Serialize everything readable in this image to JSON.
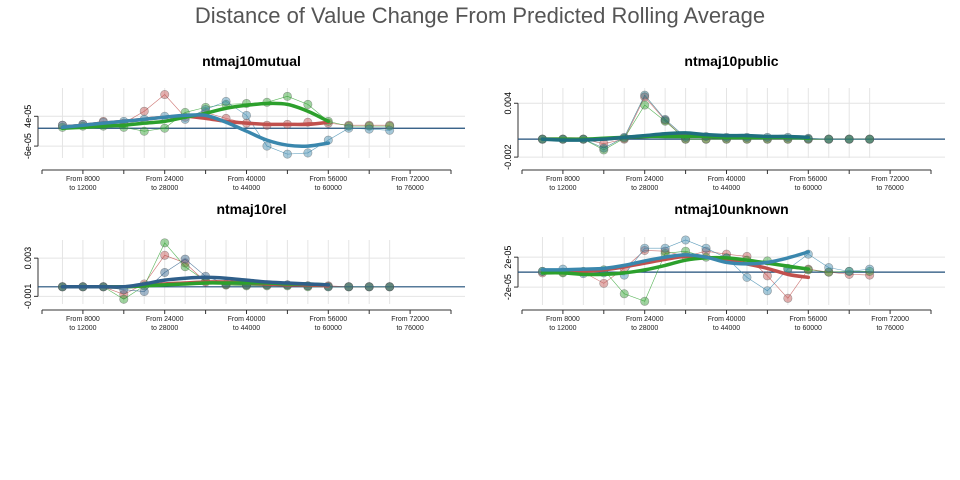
{
  "title": "Distance of Value Change From Predicted Rolling Average",
  "chart_data": [
    {
      "type": "line",
      "title": "ntmaj10mutual",
      "x": [
        4000,
        8000,
        12000,
        16000,
        20000,
        24000,
        28000,
        32000,
        36000,
        40000,
        44000,
        48000,
        52000,
        56000,
        60000,
        64000,
        68000
      ],
      "xlim": [
        0,
        80000
      ],
      "xticks": [
        {
          "value": 8000,
          "label": "From 8000\nto 12000"
        },
        {
          "value": 24000,
          "label": "From 24000\nto 28000"
        },
        {
          "value": 40000,
          "label": "From 40000\nto 44000"
        },
        {
          "value": 56000,
          "label": "From 56000\nto 60000"
        },
        {
          "value": 72000,
          "label": "From 72000\nto 76000"
        }
      ],
      "xminorticks": [
        0,
        16000,
        32000,
        48000,
        64000,
        80000
      ],
      "ylim": [
        -0.0001,
        0.000135
      ],
      "yticks": [
        {
          "value": -6e-05,
          "label": "-6e-05"
        },
        {
          "value": 4e-05,
          "label": "4e-05"
        }
      ],
      "hline": 0,
      "grid": true,
      "series": [
        {
          "color": "#c0504d",
          "values": [
            1e-05,
            1.3e-05,
            2.3e-05,
            1.7e-05,
            5.7e-05,
            0.000113,
            3.7e-05,
            5.3e-05,
            3.3e-05,
            1.7e-05,
            1e-05,
            1.3e-05,
            2e-05,
            1.7e-05,
            1e-05,
            1e-05,
            1e-05
          ],
          "trend": [
            3e-06,
            1e-05,
            1.7e-05,
            2.3e-05,
            3e-05,
            3.7e-05,
            4e-05,
            3.3e-05,
            2.3e-05,
            1.7e-05,
            1.3e-05,
            1.3e-05,
            1.3e-05,
            2e-05
          ]
        },
        {
          "color": "#2ca02c",
          "values": [
            3e-06,
            7e-06,
            7e-06,
            3e-06,
            -1e-05,
            0,
            5.3e-05,
            7e-05,
            8e-05,
            8.3e-05,
            8.7e-05,
            0.000107,
            8e-05,
            2.3e-05,
            7e-06,
            7e-06,
            7e-06
          ],
          "trend": [
            0,
            3e-06,
            7e-06,
            1e-05,
            1.7e-05,
            2.3e-05,
            3.7e-05,
            5e-05,
            6.7e-05,
            7.7e-05,
            8.3e-05,
            8e-05,
            5.7e-05,
            2.3e-05
          ]
        },
        {
          "color": "#3a87ad",
          "values": [
            1e-05,
            1.3e-05,
            2e-05,
            2.3e-05,
            3e-05,
            4e-05,
            3e-05,
            6.3e-05,
            9e-05,
            4.3e-05,
            -6e-05,
            -8.7e-05,
            -8.3e-05,
            -4e-05,
            0,
            -3e-06,
            -7e-06
          ],
          "trend": [
            3e-06,
            1e-05,
            1.7e-05,
            2.3e-05,
            3e-05,
            3.7e-05,
            4.3e-05,
            4.3e-05,
            2e-05,
            -1e-05,
            -4e-05,
            -5.7e-05,
            -6e-05,
            -5e-05
          ]
        }
      ]
    },
    {
      "type": "line",
      "title": "ntmaj10public",
      "x": [
        4000,
        8000,
        12000,
        16000,
        20000,
        24000,
        28000,
        32000,
        36000,
        40000,
        44000,
        48000,
        52000,
        56000,
        60000,
        64000,
        68000
      ],
      "xlim": [
        0,
        80000
      ],
      "xticks": [
        {
          "value": 8000,
          "label": "From 8000\nto 12000"
        },
        {
          "value": 24000,
          "label": "From 24000\nto 28000"
        },
        {
          "value": 40000,
          "label": "From 40000\nto 44000"
        },
        {
          "value": 56000,
          "label": "From 56000\nto 60000"
        },
        {
          "value": 72000,
          "label": "From 72000\nto 76000"
        }
      ],
      "xminorticks": [
        0,
        16000,
        32000,
        48000,
        64000,
        80000
      ],
      "ylim": [
        -0.0021,
        0.0057
      ],
      "yticks": [
        -0.002,
        0.004
      ],
      "hline": 0,
      "grid": true,
      "series": [
        {
          "color": "#c0504d",
          "values": [
            0,
            0,
            0,
            -0.0005,
            0,
            0.0047,
            0.0021,
            0,
            0,
            0,
            0,
            0,
            0,
            0,
            0,
            0,
            0
          ],
          "trend": [
            0,
            0,
            0,
            0,
            0.0002,
            0.0003,
            0.0004,
            0.0004,
            0.0003,
            0.0003,
            0.0003,
            0.0002,
            0.0002,
            0.0002
          ]
        },
        {
          "color": "#2ca02c",
          "values": [
            0,
            0,
            0,
            -0.0012,
            0.0001,
            0.0038,
            0.002,
            0,
            0,
            0,
            0,
            0,
            0,
            0,
            0,
            0,
            0
          ],
          "trend": [
            0,
            0,
            0,
            0.0001,
            0.0002,
            0.0003,
            0.0003,
            0.0003,
            0.0003,
            0.0002,
            0.0002,
            0.0002,
            0.0002,
            0.0001
          ]
        },
        {
          "color": "#1f6f80",
          "values": [
            0,
            0,
            0,
            -0.001,
            0.0002,
            0.0049,
            0.0022,
            0.0002,
            0.0003,
            0.0002,
            0.0002,
            0.0002,
            0.0002,
            0.0001,
            0,
            0,
            0
          ],
          "trend": [
            0,
            -0.0001,
            -0.0001,
            0,
            0.0002,
            0.0004,
            0.0006,
            0.0007,
            0.0005,
            0.0004,
            0.0004,
            0.0003,
            0.0003,
            0.0002
          ]
        }
      ]
    },
    {
      "type": "line",
      "title": "ntmaj10rel",
      "x": [
        4000,
        8000,
        12000,
        16000,
        20000,
        24000,
        28000,
        32000,
        36000,
        40000,
        44000,
        48000,
        52000,
        56000,
        60000,
        64000,
        68000
      ],
      "xlim": [
        0,
        80000
      ],
      "xticks": [
        {
          "value": 8000,
          "label": "From 8000\nto 12000"
        },
        {
          "value": 24000,
          "label": "From 24000\nto 28000"
        },
        {
          "value": 40000,
          "label": "From 40000\nto 44000"
        },
        {
          "value": 56000,
          "label": "From 56000\nto 60000"
        },
        {
          "value": 72000,
          "label": "From 72000\nto 76000"
        }
      ],
      "xminorticks": [
        0,
        16000,
        32000,
        48000,
        64000,
        80000
      ],
      "ylim": [
        -0.0018,
        0.0049
      ],
      "yticks": [
        -0.001,
        0.003
      ],
      "hline": 0,
      "grid": true,
      "series": [
        {
          "color": "#c0504d",
          "values": [
            0,
            0,
            0,
            -0.0008,
            0.0003,
            0.0033,
            0.0025,
            0.0005,
            0.0002,
            0.0002,
            0.0002,
            0.0002,
            0.0001,
            0.0001,
            0,
            0,
            0
          ],
          "trend": [
            0,
            0,
            0,
            0,
            0.0001,
            0.0003,
            0.0004,
            0.0005,
            0.0005,
            0.0004,
            0.0003,
            0.0002,
            0.0002,
            0.0001
          ]
        },
        {
          "color": "#2ca02c",
          "values": [
            0,
            0,
            0,
            -0.0013,
            0.0001,
            0.0046,
            0.0021,
            0.0006,
            0.0002,
            0.0001,
            0.0001,
            0.0001,
            0,
            0,
            0,
            0,
            0
          ],
          "trend": [
            0,
            0,
            0,
            0,
            0.0001,
            0.0002,
            0.0003,
            0.0004,
            0.0004,
            0.0004,
            0.0004,
            0.0003,
            0.0003,
            0.0002
          ]
        },
        {
          "color": "#2f5f8a",
          "values": [
            0,
            0,
            0,
            -0.0003,
            -0.0005,
            0.0015,
            0.0029,
            0.0011,
            0.0003,
            0.0002,
            0.0002,
            0.0002,
            0.0001,
            0,
            0,
            0,
            0
          ],
          "trend": [
            0,
            0,
            0,
            0,
            0.0003,
            0.0007,
            0.0009,
            0.001,
            0.0009,
            0.0007,
            0.0005,
            0.0004,
            0.0003,
            0.0002
          ]
        }
      ]
    },
    {
      "type": "line",
      "title": "ntmaj10unknown",
      "x": [
        4000,
        8000,
        12000,
        16000,
        20000,
        24000,
        28000,
        32000,
        36000,
        40000,
        44000,
        48000,
        52000,
        56000,
        60000,
        64000,
        68000
      ],
      "xlim": [
        0,
        80000
      ],
      "xticks": [
        {
          "value": 8000,
          "label": "From 8000\nto 12000"
        },
        {
          "value": 24000,
          "label": "From 24000\nto 28000"
        },
        {
          "value": 40000,
          "label": "From 40000\nto 44000"
        },
        {
          "value": 56000,
          "label": "From 56000\nto 60000"
        },
        {
          "value": 72000,
          "label": "From 72000\nto 76000"
        }
      ],
      "xminorticks": [
        0,
        16000,
        32000,
        48000,
        64000,
        80000
      ],
      "ylim": [
        -4.4e-05,
        4.7e-05
      ],
      "yticks": [
        {
          "value": -2e-05,
          "label": "-2e-05"
        },
        {
          "value": 2e-05,
          "label": "2e-05"
        }
      ],
      "hline": 0,
      "grid": true,
      "series": [
        {
          "color": "#c0504d",
          "values": [
            -1e-06,
            0,
            0,
            -1.5e-05,
            5e-06,
            2.9e-05,
            2.8e-05,
            2.1e-05,
            2.8e-05,
            2.4e-05,
            2.1e-05,
            -5e-06,
            -3.5e-05,
            4e-06,
            0,
            -3e-06,
            -4e-06
          ],
          "trend": [
            0,
            0,
            1e-06,
            3e-06,
            7e-06,
            1.2e-05,
            1.7e-05,
            2.1e-05,
            2e-05,
            1.6e-05,
            1.1e-05,
            5e-06,
            -3e-06,
            -7e-06
          ]
        },
        {
          "color": "#2ca02c",
          "values": [
            1e-06,
            -1e-06,
            1e-06,
            3e-06,
            -2.9e-05,
            -3.9e-05,
            2.5e-05,
            2.8e-05,
            2e-05,
            1.9e-05,
            1.6e-05,
            1.5e-05,
            5e-06,
            3e-06,
            0,
            1e-06,
            1e-06
          ],
          "trend": [
            -1e-06,
            -1e-06,
            -3e-06,
            -3e-06,
            -1e-06,
            3e-06,
            9e-06,
            1.6e-05,
            1.9e-05,
            1.9e-05,
            1.6e-05,
            1.2e-05,
            8e-06,
            4e-06
          ]
        },
        {
          "color": "#3a87ad",
          "values": [
            1e-06,
            4e-06,
            -2e-06,
            -1e-06,
            -4e-06,
            3.2e-05,
            3.2e-05,
            4.3e-05,
            3.2e-05,
            1.9e-05,
            -7e-06,
            -2.5e-05,
            4e-06,
            2.4e-05,
            6e-06,
            1e-06,
            4e-06
          ],
          "trend": [
            3e-06,
            3e-06,
            4e-06,
            5e-06,
            9e-06,
            1.5e-05,
            2e-05,
            2.3e-05,
            2e-05,
            1.3e-05,
            1.1e-05,
            1.3e-05,
            1.9e-05,
            2.7e-05
          ]
        }
      ]
    }
  ]
}
